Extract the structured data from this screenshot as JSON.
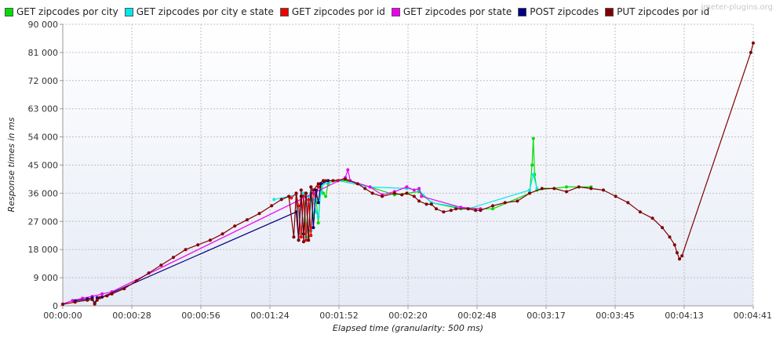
{
  "watermark": "jmeter-plugins.org",
  "chart_data": {
    "type": "line",
    "title": "",
    "xlabel": "Elapsed time (granularity: 500 ms)",
    "ylabel": "Response times in ms",
    "x_ticks": [
      "00:00:00",
      "00:00:28",
      "00:00:56",
      "00:01:24",
      "00:01:52",
      "00:02:20",
      "00:02:48",
      "00:03:17",
      "00:03:45",
      "00:04:13",
      "00:04:41"
    ],
    "y_ticks": [
      "0",
      "9 000",
      "18 000",
      "27 000",
      "36 000",
      "45 000",
      "54 000",
      "63 000",
      "72 000",
      "81 000",
      "90 000"
    ],
    "xlim": [
      0,
      281
    ],
    "ylim": [
      0,
      90000
    ],
    "grid": true,
    "legend_position": "top-left",
    "x_unit": "seconds",
    "y_unit": "ms",
    "series": [
      {
        "name": "GET zipcodes por city",
        "color": "#00dd00",
        "points": [
          [
            98,
            35500
          ],
          [
            99,
            26000
          ],
          [
            100,
            22000
          ],
          [
            101,
            36000
          ],
          [
            102,
            28000
          ],
          [
            103,
            35000
          ],
          [
            104,
            26500
          ],
          [
            105,
            38000
          ],
          [
            106,
            36000
          ],
          [
            107,
            35000
          ],
          [
            108,
            39000
          ],
          [
            110,
            40000
          ],
          [
            116,
            40000
          ],
          [
            125,
            38000
          ],
          [
            135,
            35500
          ],
          [
            145,
            36500
          ],
          [
            150,
            33000
          ],
          [
            162,
            31000
          ],
          [
            175,
            31000
          ],
          [
            190,
            36000
          ],
          [
            191,
            45000
          ],
          [
            191.5,
            53500
          ],
          [
            192,
            42000
          ],
          [
            193,
            37000
          ],
          [
            205,
            38000
          ],
          [
            215,
            38000
          ]
        ]
      },
      {
        "name": "GET zipcodes por city e state",
        "color": "#00e8e8",
        "points": [
          [
            86,
            34000
          ],
          [
            95,
            35500
          ],
          [
            97,
            23000
          ],
          [
            98,
            36000
          ],
          [
            99,
            22000
          ],
          [
            100,
            35000
          ],
          [
            101,
            24000
          ],
          [
            102,
            34000
          ],
          [
            103,
            30000
          ],
          [
            104,
            28500
          ],
          [
            105,
            36000
          ],
          [
            106,
            39000
          ],
          [
            112,
            40000
          ],
          [
            125,
            38000
          ],
          [
            140,
            37500
          ],
          [
            145,
            37000
          ],
          [
            150,
            33000
          ],
          [
            165,
            31000
          ],
          [
            190,
            37000
          ],
          [
            191.5,
            42000
          ],
          [
            193,
            37500
          ]
        ]
      },
      {
        "name": "GET zipcodes por id",
        "color": "#ee0000",
        "points": [
          [
            93,
            34500
          ],
          [
            95,
            36000
          ],
          [
            96,
            32000
          ],
          [
            97,
            22000
          ],
          [
            98,
            35000
          ],
          [
            99,
            21000
          ],
          [
            100,
            34000
          ],
          [
            101,
            22500
          ],
          [
            102,
            36000
          ],
          [
            103,
            35000
          ],
          [
            104,
            38000
          ],
          [
            107,
            40000
          ],
          [
            112,
            40000
          ]
        ]
      },
      {
        "name": "GET zipcodes por state",
        "color": "#ee00ee",
        "points": [
          [
            0,
            600
          ],
          [
            4,
            1700
          ],
          [
            8,
            2400
          ],
          [
            12,
            3000
          ],
          [
            16,
            3800
          ],
          [
            20,
            4500
          ],
          [
            115,
            41000
          ],
          [
            116,
            43500
          ],
          [
            117,
            40000
          ],
          [
            125,
            38000
          ],
          [
            130,
            35500
          ],
          [
            135,
            36500
          ],
          [
            140,
            38000
          ],
          [
            143,
            37000
          ],
          [
            145,
            37500
          ],
          [
            146,
            35000
          ],
          [
            162,
            31500
          ],
          [
            170,
            31000
          ]
        ]
      },
      {
        "name": "POST zipcodes",
        "color": "#000080",
        "points": [
          [
            5,
            1600
          ],
          [
            10,
            2200
          ],
          [
            12,
            2500
          ],
          [
            13,
            800
          ],
          [
            14,
            2600
          ],
          [
            16,
            2800
          ],
          [
            95,
            30000
          ],
          [
            96,
            21000
          ],
          [
            97,
            35000
          ],
          [
            98,
            23000
          ],
          [
            99,
            36000
          ],
          [
            100,
            21000
          ],
          [
            101,
            38000
          ],
          [
            102,
            25000
          ],
          [
            103,
            37000
          ],
          [
            104,
            33000
          ],
          [
            105,
            39000
          ],
          [
            108,
            40000
          ]
        ]
      },
      {
        "name": "PUT zipcodes por id",
        "color": "#800000",
        "points": [
          [
            0,
            500
          ],
          [
            5,
            1200
          ],
          [
            10,
            1800
          ],
          [
            12,
            2000
          ],
          [
            13,
            600
          ],
          [
            14,
            1800
          ],
          [
            15,
            2600
          ],
          [
            18,
            3200
          ],
          [
            20,
            3800
          ],
          [
            25,
            5500
          ],
          [
            30,
            8000
          ],
          [
            35,
            10500
          ],
          [
            40,
            13000
          ],
          [
            45,
            15500
          ],
          [
            50,
            18000
          ],
          [
            55,
            19500
          ],
          [
            60,
            21000
          ],
          [
            65,
            23000
          ],
          [
            70,
            25500
          ],
          [
            75,
            27500
          ],
          [
            80,
            29500
          ],
          [
            85,
            32000
          ],
          [
            89,
            34000
          ],
          [
            92,
            35000
          ],
          [
            94,
            22000
          ],
          [
            95,
            36000
          ],
          [
            96,
            21000
          ],
          [
            97,
            37000
          ],
          [
            98,
            20500
          ],
          [
            99,
            36000
          ],
          [
            100,
            21000
          ],
          [
            101,
            38000
          ],
          [
            102,
            37000
          ],
          [
            104,
            39000
          ],
          [
            106,
            40000
          ],
          [
            110,
            40000
          ],
          [
            115,
            40500
          ],
          [
            120,
            39000
          ],
          [
            123,
            37500
          ],
          [
            126,
            36000
          ],
          [
            130,
            35000
          ],
          [
            135,
            36000
          ],
          [
            138,
            35500
          ],
          [
            140,
            36000
          ],
          [
            143,
            35000
          ],
          [
            145,
            33500
          ],
          [
            148,
            32500
          ],
          [
            150,
            32500
          ],
          [
            152,
            31000
          ],
          [
            155,
            30000
          ],
          [
            158,
            30500
          ],
          [
            160,
            31000
          ],
          [
            165,
            31000
          ],
          [
            168,
            30500
          ],
          [
            170,
            30500
          ],
          [
            175,
            32000
          ],
          [
            180,
            33000
          ],
          [
            185,
            33500
          ],
          [
            190,
            36000
          ],
          [
            195,
            37500
          ],
          [
            200,
            37500
          ],
          [
            205,
            36500
          ],
          [
            210,
            38000
          ],
          [
            215,
            37500
          ],
          [
            220,
            37000
          ],
          [
            225,
            35000
          ],
          [
            230,
            33000
          ],
          [
            235,
            30000
          ],
          [
            240,
            28000
          ],
          [
            244,
            25000
          ],
          [
            247,
            22000
          ],
          [
            249,
            19500
          ],
          [
            250,
            17000
          ],
          [
            251,
            15000
          ],
          [
            252,
            16000
          ],
          [
            280,
            81000
          ],
          [
            281,
            84000
          ]
        ]
      }
    ]
  }
}
